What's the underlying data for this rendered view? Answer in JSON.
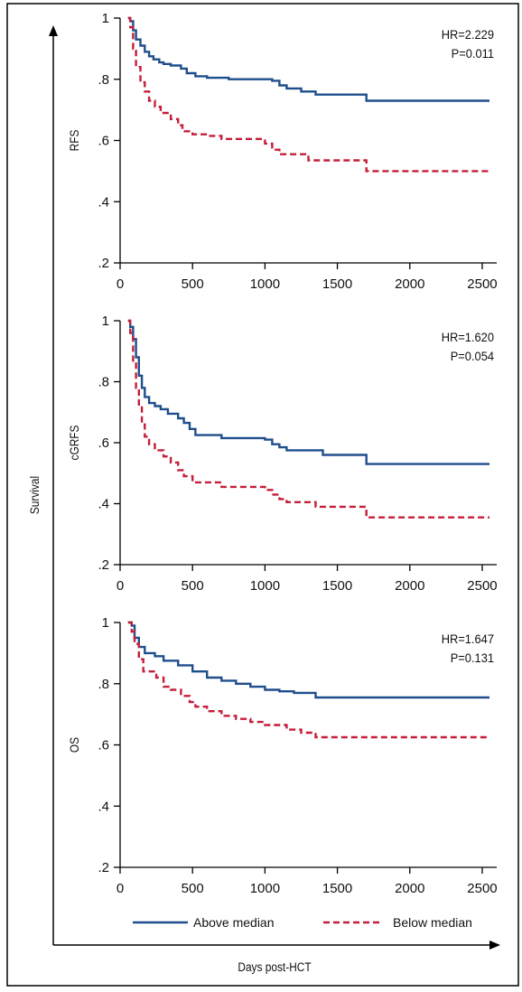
{
  "ylabel": "Survival",
  "xlabel": "Days post-HCT",
  "colors": {
    "above": "#1f4e8c",
    "below": "#c41e3a"
  },
  "legend": {
    "placement": "bottom",
    "items": [
      {
        "label": "Above median",
        "color": "#1f4e8c",
        "style": "solid"
      },
      {
        "label": "Below median",
        "color": "#c41e3a",
        "style": "dashed"
      }
    ]
  },
  "chart_data": [
    {
      "type": "line",
      "ylabel": "RFS",
      "annotation": [
        "HR=2.229",
        "P=0.011"
      ],
      "xlim": [
        0,
        2600
      ],
      "ylim": [
        0.2,
        1.0
      ],
      "xticks": [
        "0",
        "500",
        "1000",
        "1500",
        "2000",
        "2500"
      ],
      "xtick_values": [
        0,
        500,
        1000,
        1500,
        2000,
        2500
      ],
      "yticks": [
        ".2",
        ".4",
        ".6",
        ".8",
        "1"
      ],
      "ytick_values": [
        0.2,
        0.4,
        0.6,
        0.8,
        1.0
      ],
      "series": [
        {
          "name": "Above median",
          "step": true,
          "points": [
            [
              55,
              1.0
            ],
            [
              70,
              0.99
            ],
            [
              90,
              0.96
            ],
            [
              110,
              0.93
            ],
            [
              140,
              0.91
            ],
            [
              170,
              0.89
            ],
            [
              200,
              0.875
            ],
            [
              230,
              0.865
            ],
            [
              270,
              0.855
            ],
            [
              300,
              0.85
            ],
            [
              350,
              0.845
            ],
            [
              420,
              0.835
            ],
            [
              460,
              0.82
            ],
            [
              520,
              0.81
            ],
            [
              600,
              0.805
            ],
            [
              750,
              0.8
            ],
            [
              1050,
              0.795
            ],
            [
              1100,
              0.78
            ],
            [
              1150,
              0.77
            ],
            [
              1250,
              0.76
            ],
            [
              1350,
              0.75
            ],
            [
              1700,
              0.73
            ],
            [
              2550,
              0.73
            ]
          ]
        },
        {
          "name": "Below median",
          "step": true,
          "points": [
            [
              55,
              1.0
            ],
            [
              70,
              0.97
            ],
            [
              90,
              0.9
            ],
            [
              110,
              0.84
            ],
            [
              140,
              0.79
            ],
            [
              170,
              0.76
            ],
            [
              200,
              0.73
            ],
            [
              240,
              0.71
            ],
            [
              280,
              0.69
            ],
            [
              350,
              0.67
            ],
            [
              400,
              0.65
            ],
            [
              430,
              0.63
            ],
            [
              500,
              0.62
            ],
            [
              600,
              0.615
            ],
            [
              700,
              0.605
            ],
            [
              1000,
              0.59
            ],
            [
              1050,
              0.57
            ],
            [
              1100,
              0.555
            ],
            [
              1300,
              0.535
            ],
            [
              1700,
              0.5
            ],
            [
              2550,
              0.5
            ]
          ]
        }
      ]
    },
    {
      "type": "line",
      "ylabel": "cGRFS",
      "annotation": [
        "HR=1.620",
        "P=0.054"
      ],
      "xlim": [
        0,
        2600
      ],
      "ylim": [
        0.2,
        1.0
      ],
      "xticks": [
        "0",
        "500",
        "1000",
        "1500",
        "2000",
        "2500"
      ],
      "xtick_values": [
        0,
        500,
        1000,
        1500,
        2000,
        2500
      ],
      "yticks": [
        ".2",
        ".4",
        ".6",
        ".8",
        "1"
      ],
      "ytick_values": [
        0.2,
        0.4,
        0.6,
        0.8,
        1.0
      ],
      "series": [
        {
          "name": "Above median",
          "step": true,
          "points": [
            [
              55,
              1.0
            ],
            [
              70,
              0.98
            ],
            [
              90,
              0.94
            ],
            [
              110,
              0.88
            ],
            [
              130,
              0.82
            ],
            [
              150,
              0.78
            ],
            [
              170,
              0.75
            ],
            [
              200,
              0.73
            ],
            [
              240,
              0.72
            ],
            [
              280,
              0.71
            ],
            [
              330,
              0.695
            ],
            [
              400,
              0.68
            ],
            [
              440,
              0.665
            ],
            [
              480,
              0.645
            ],
            [
              520,
              0.625
            ],
            [
              700,
              0.615
            ],
            [
              1000,
              0.61
            ],
            [
              1050,
              0.595
            ],
            [
              1100,
              0.585
            ],
            [
              1150,
              0.575
            ],
            [
              1400,
              0.56
            ],
            [
              1700,
              0.53
            ],
            [
              2550,
              0.53
            ]
          ]
        },
        {
          "name": "Below median",
          "step": true,
          "points": [
            [
              55,
              1.0
            ],
            [
              70,
              0.96
            ],
            [
              90,
              0.86
            ],
            [
              110,
              0.78
            ],
            [
              130,
              0.72
            ],
            [
              150,
              0.66
            ],
            [
              170,
              0.62
            ],
            [
              200,
              0.595
            ],
            [
              240,
              0.575
            ],
            [
              300,
              0.555
            ],
            [
              350,
              0.535
            ],
            [
              400,
              0.51
            ],
            [
              440,
              0.49
            ],
            [
              500,
              0.47
            ],
            [
              700,
              0.455
            ],
            [
              1000,
              0.445
            ],
            [
              1050,
              0.43
            ],
            [
              1100,
              0.415
            ],
            [
              1150,
              0.405
            ],
            [
              1350,
              0.39
            ],
            [
              1700,
              0.355
            ],
            [
              2550,
              0.355
            ]
          ]
        }
      ]
    },
    {
      "type": "line",
      "ylabel": "OS",
      "annotation": [
        "HR=1.647",
        "P=0.131"
      ],
      "xlim": [
        0,
        2600
      ],
      "ylim": [
        0.2,
        1.0
      ],
      "xticks": [
        "0",
        "500",
        "1000",
        "1500",
        "2000",
        "2500"
      ],
      "xtick_values": [
        0,
        500,
        1000,
        1500,
        2000,
        2500
      ],
      "yticks": [
        ".2",
        ".4",
        ".6",
        ".8",
        "1"
      ],
      "ytick_values": [
        0.2,
        0.4,
        0.6,
        0.8,
        1.0
      ],
      "series": [
        {
          "name": "Above median",
          "step": true,
          "points": [
            [
              55,
              1.0
            ],
            [
              80,
              0.99
            ],
            [
              100,
              0.95
            ],
            [
              130,
              0.92
            ],
            [
              170,
              0.9
            ],
            [
              240,
              0.89
            ],
            [
              300,
              0.875
            ],
            [
              400,
              0.86
            ],
            [
              500,
              0.84
            ],
            [
              600,
              0.82
            ],
            [
              700,
              0.81
            ],
            [
              800,
              0.8
            ],
            [
              900,
              0.79
            ],
            [
              1000,
              0.78
            ],
            [
              1100,
              0.775
            ],
            [
              1200,
              0.77
            ],
            [
              1350,
              0.755
            ],
            [
              2550,
              0.755
            ]
          ]
        },
        {
          "name": "Below median",
          "step": true,
          "points": [
            [
              55,
              1.0
            ],
            [
              80,
              0.97
            ],
            [
              100,
              0.93
            ],
            [
              130,
              0.88
            ],
            [
              160,
              0.84
            ],
            [
              250,
              0.82
            ],
            [
              300,
              0.79
            ],
            [
              350,
              0.78
            ],
            [
              420,
              0.76
            ],
            [
              480,
              0.74
            ],
            [
              520,
              0.725
            ],
            [
              600,
              0.71
            ],
            [
              700,
              0.695
            ],
            [
              800,
              0.685
            ],
            [
              900,
              0.675
            ],
            [
              1000,
              0.665
            ],
            [
              1150,
              0.65
            ],
            [
              1250,
              0.64
            ],
            [
              1350,
              0.625
            ],
            [
              2550,
              0.625
            ]
          ]
        }
      ]
    }
  ]
}
